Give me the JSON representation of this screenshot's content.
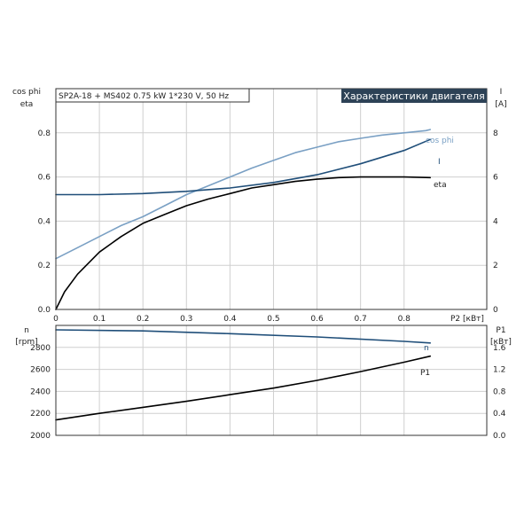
{
  "chart_data": [
    {
      "type": "line",
      "title": "Характеристики двигателя",
      "subtitle": "SP2A-18 + MS402  0.75 kW  1*230 V, 50 Hz",
      "xlabel": "P2 [кВт]",
      "ylabel_left": [
        "cos phi",
        "eta"
      ],
      "ylabel_right": [
        "I",
        "[A]"
      ],
      "xlim": [
        0,
        0.99
      ],
      "ylim_left": [
        0,
        1.0
      ],
      "ylim_right": [
        0,
        10
      ],
      "x_ticks": [
        "0",
        "0.1",
        "0.2",
        "0.3",
        "0.4",
        "0.5",
        "0.6",
        "0.7",
        "0.8"
      ],
      "y_left_ticks": [
        "0.0",
        "0.2",
        "0.4",
        "0.6",
        "0.8"
      ],
      "y_right_ticks": [
        "0",
        "2",
        "4",
        "6",
        "8"
      ],
      "grid": true,
      "colors": {
        "cos_phi": "#7aa0c4",
        "I": "#1f4e79",
        "eta": "#000000",
        "title_bg": "#2d4256"
      },
      "series": [
        {
          "name": "cos phi",
          "axis": "left",
          "color": "#7aa0c4",
          "x": [
            0,
            0.05,
            0.1,
            0.15,
            0.2,
            0.25,
            0.3,
            0.35,
            0.4,
            0.45,
            0.5,
            0.55,
            0.6,
            0.65,
            0.7,
            0.75,
            0.8,
            0.85,
            0.86
          ],
          "y": [
            0.23,
            0.28,
            0.33,
            0.38,
            0.42,
            0.47,
            0.52,
            0.56,
            0.6,
            0.64,
            0.675,
            0.71,
            0.735,
            0.76,
            0.775,
            0.79,
            0.8,
            0.81,
            0.815
          ]
        },
        {
          "name": "I",
          "axis": "right",
          "color": "#1f4e79",
          "x": [
            0,
            0.1,
            0.2,
            0.3,
            0.4,
            0.5,
            0.6,
            0.7,
            0.8,
            0.86
          ],
          "y": [
            5.2,
            5.2,
            5.25,
            5.35,
            5.5,
            5.75,
            6.1,
            6.6,
            7.2,
            7.7
          ]
        },
        {
          "name": "eta",
          "axis": "left",
          "color": "#000000",
          "x": [
            0,
            0.02,
            0.05,
            0.1,
            0.15,
            0.2,
            0.25,
            0.3,
            0.35,
            0.4,
            0.45,
            0.5,
            0.55,
            0.6,
            0.65,
            0.7,
            0.75,
            0.8,
            0.86
          ],
          "y": [
            0.0,
            0.08,
            0.16,
            0.26,
            0.33,
            0.39,
            0.43,
            0.47,
            0.5,
            0.525,
            0.55,
            0.565,
            0.58,
            0.59,
            0.597,
            0.6,
            0.6,
            0.6,
            0.597
          ]
        }
      ]
    },
    {
      "type": "line",
      "xlabel": "",
      "ylabel_left": [
        "n",
        "[rpm]"
      ],
      "ylabel_right": [
        "P1",
        "[кВт]"
      ],
      "xlim": [
        0,
        0.99
      ],
      "ylim_left": [
        2000,
        3000
      ],
      "ylim_right": [
        0,
        2.0
      ],
      "y_left_ticks": [
        "2000",
        "2200",
        "2400",
        "2600",
        "2800"
      ],
      "y_right_ticks": [
        "0.0",
        "0.4",
        "0.8",
        "1.2",
        "1.6"
      ],
      "grid": true,
      "series": [
        {
          "name": "n",
          "axis": "left",
          "color": "#1f4e79",
          "x": [
            0,
            0.2,
            0.4,
            0.6,
            0.8,
            0.86
          ],
          "y": [
            2960,
            2950,
            2925,
            2895,
            2855,
            2840
          ]
        },
        {
          "name": "P1",
          "axis": "right",
          "color": "#000000",
          "x": [
            0,
            0.1,
            0.2,
            0.3,
            0.4,
            0.5,
            0.6,
            0.7,
            0.8,
            0.86
          ],
          "y": [
            0.28,
            0.4,
            0.51,
            0.62,
            0.74,
            0.86,
            1.0,
            1.16,
            1.33,
            1.44
          ]
        }
      ]
    }
  ]
}
